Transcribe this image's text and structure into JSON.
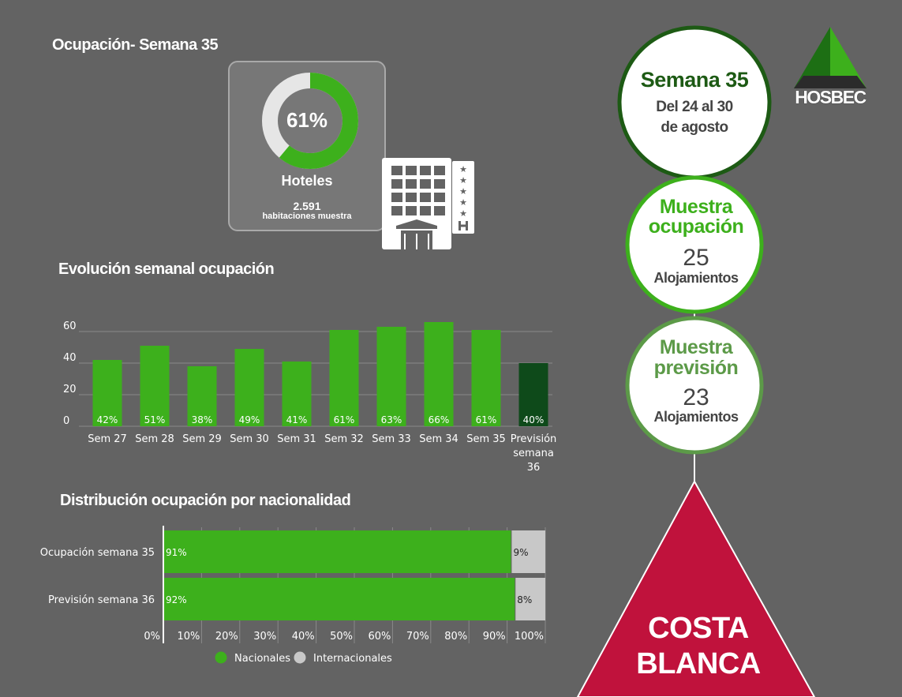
{
  "header": {
    "title": "Ocupación- Semana 35"
  },
  "occupancy_card": {
    "percent_label": "61%",
    "percent_value": 61,
    "type": "Hoteles",
    "rooms_count": "2.591",
    "rooms_label": "habitaciones muestra"
  },
  "evolution": {
    "title": "Evolución semanal ocupación"
  },
  "distribution": {
    "title": "Distribución ocupación por nacionalidad"
  },
  "chart_data": [
    {
      "type": "bar",
      "categories": [
        "Sem 27",
        "Sem 28",
        "Sem 29",
        "Sem 30",
        "Sem 31",
        "Sem 32",
        "Sem 33",
        "Sem 34",
        "Sem 35",
        "Previsión semana 36"
      ],
      "values": [
        42,
        51,
        38,
        49,
        41,
        61,
        63,
        66,
        61,
        40
      ],
      "data_labels": [
        "42%",
        "51%",
        "38%",
        "49%",
        "41%",
        "61%",
        "63%",
        "66%",
        "61%",
        "40%"
      ],
      "yticks": [
        "0",
        "20",
        "40",
        "60"
      ],
      "ylim": [
        0,
        70
      ],
      "grid": true,
      "colors": {
        "actual": "#3db01c",
        "forecast": "#0e4a1a"
      }
    },
    {
      "type": "bar",
      "orientation": "horizontal",
      "stacked": true,
      "categories": [
        "Ocupación semana 35",
        "Previsión semana 36"
      ],
      "series": [
        {
          "name": "Nacionales",
          "values": [
            91,
            92
          ],
          "labels": [
            "91%",
            "92%"
          ],
          "color": "#3db01c"
        },
        {
          "name": "Internacionales",
          "values": [
            9,
            8
          ],
          "labels": [
            "9%",
            "8%"
          ],
          "color": "#c8c8c8"
        }
      ],
      "xticks": [
        "0%",
        "10%",
        "20%",
        "30%",
        "40%",
        "50%",
        "60%",
        "70%",
        "80%",
        "90%",
        "100%"
      ],
      "xlim": [
        0,
        100
      ],
      "legend": "bottom"
    }
  ],
  "timeline": {
    "week": {
      "title": "Semana 35",
      "range_line1": "Del 24 al 30",
      "range_line2": "de agosto"
    },
    "sample_occupancy": {
      "title_line1": "Muestra",
      "title_line2": "ocupación",
      "count": "25",
      "unit": "Alojamientos"
    },
    "sample_forecast": {
      "title_line1": "Muestra",
      "title_line2": "previsión",
      "count": "23",
      "unit": "Alojamientos"
    },
    "region": {
      "line1": "COSTA",
      "line2": "BLANCA"
    },
    "colors": {
      "week": "#1d5a14",
      "occupancy": "#3db01c",
      "forecast": "#5c9a48",
      "region": "#c0123c"
    }
  },
  "logo": {
    "text": "HOSBEC"
  }
}
